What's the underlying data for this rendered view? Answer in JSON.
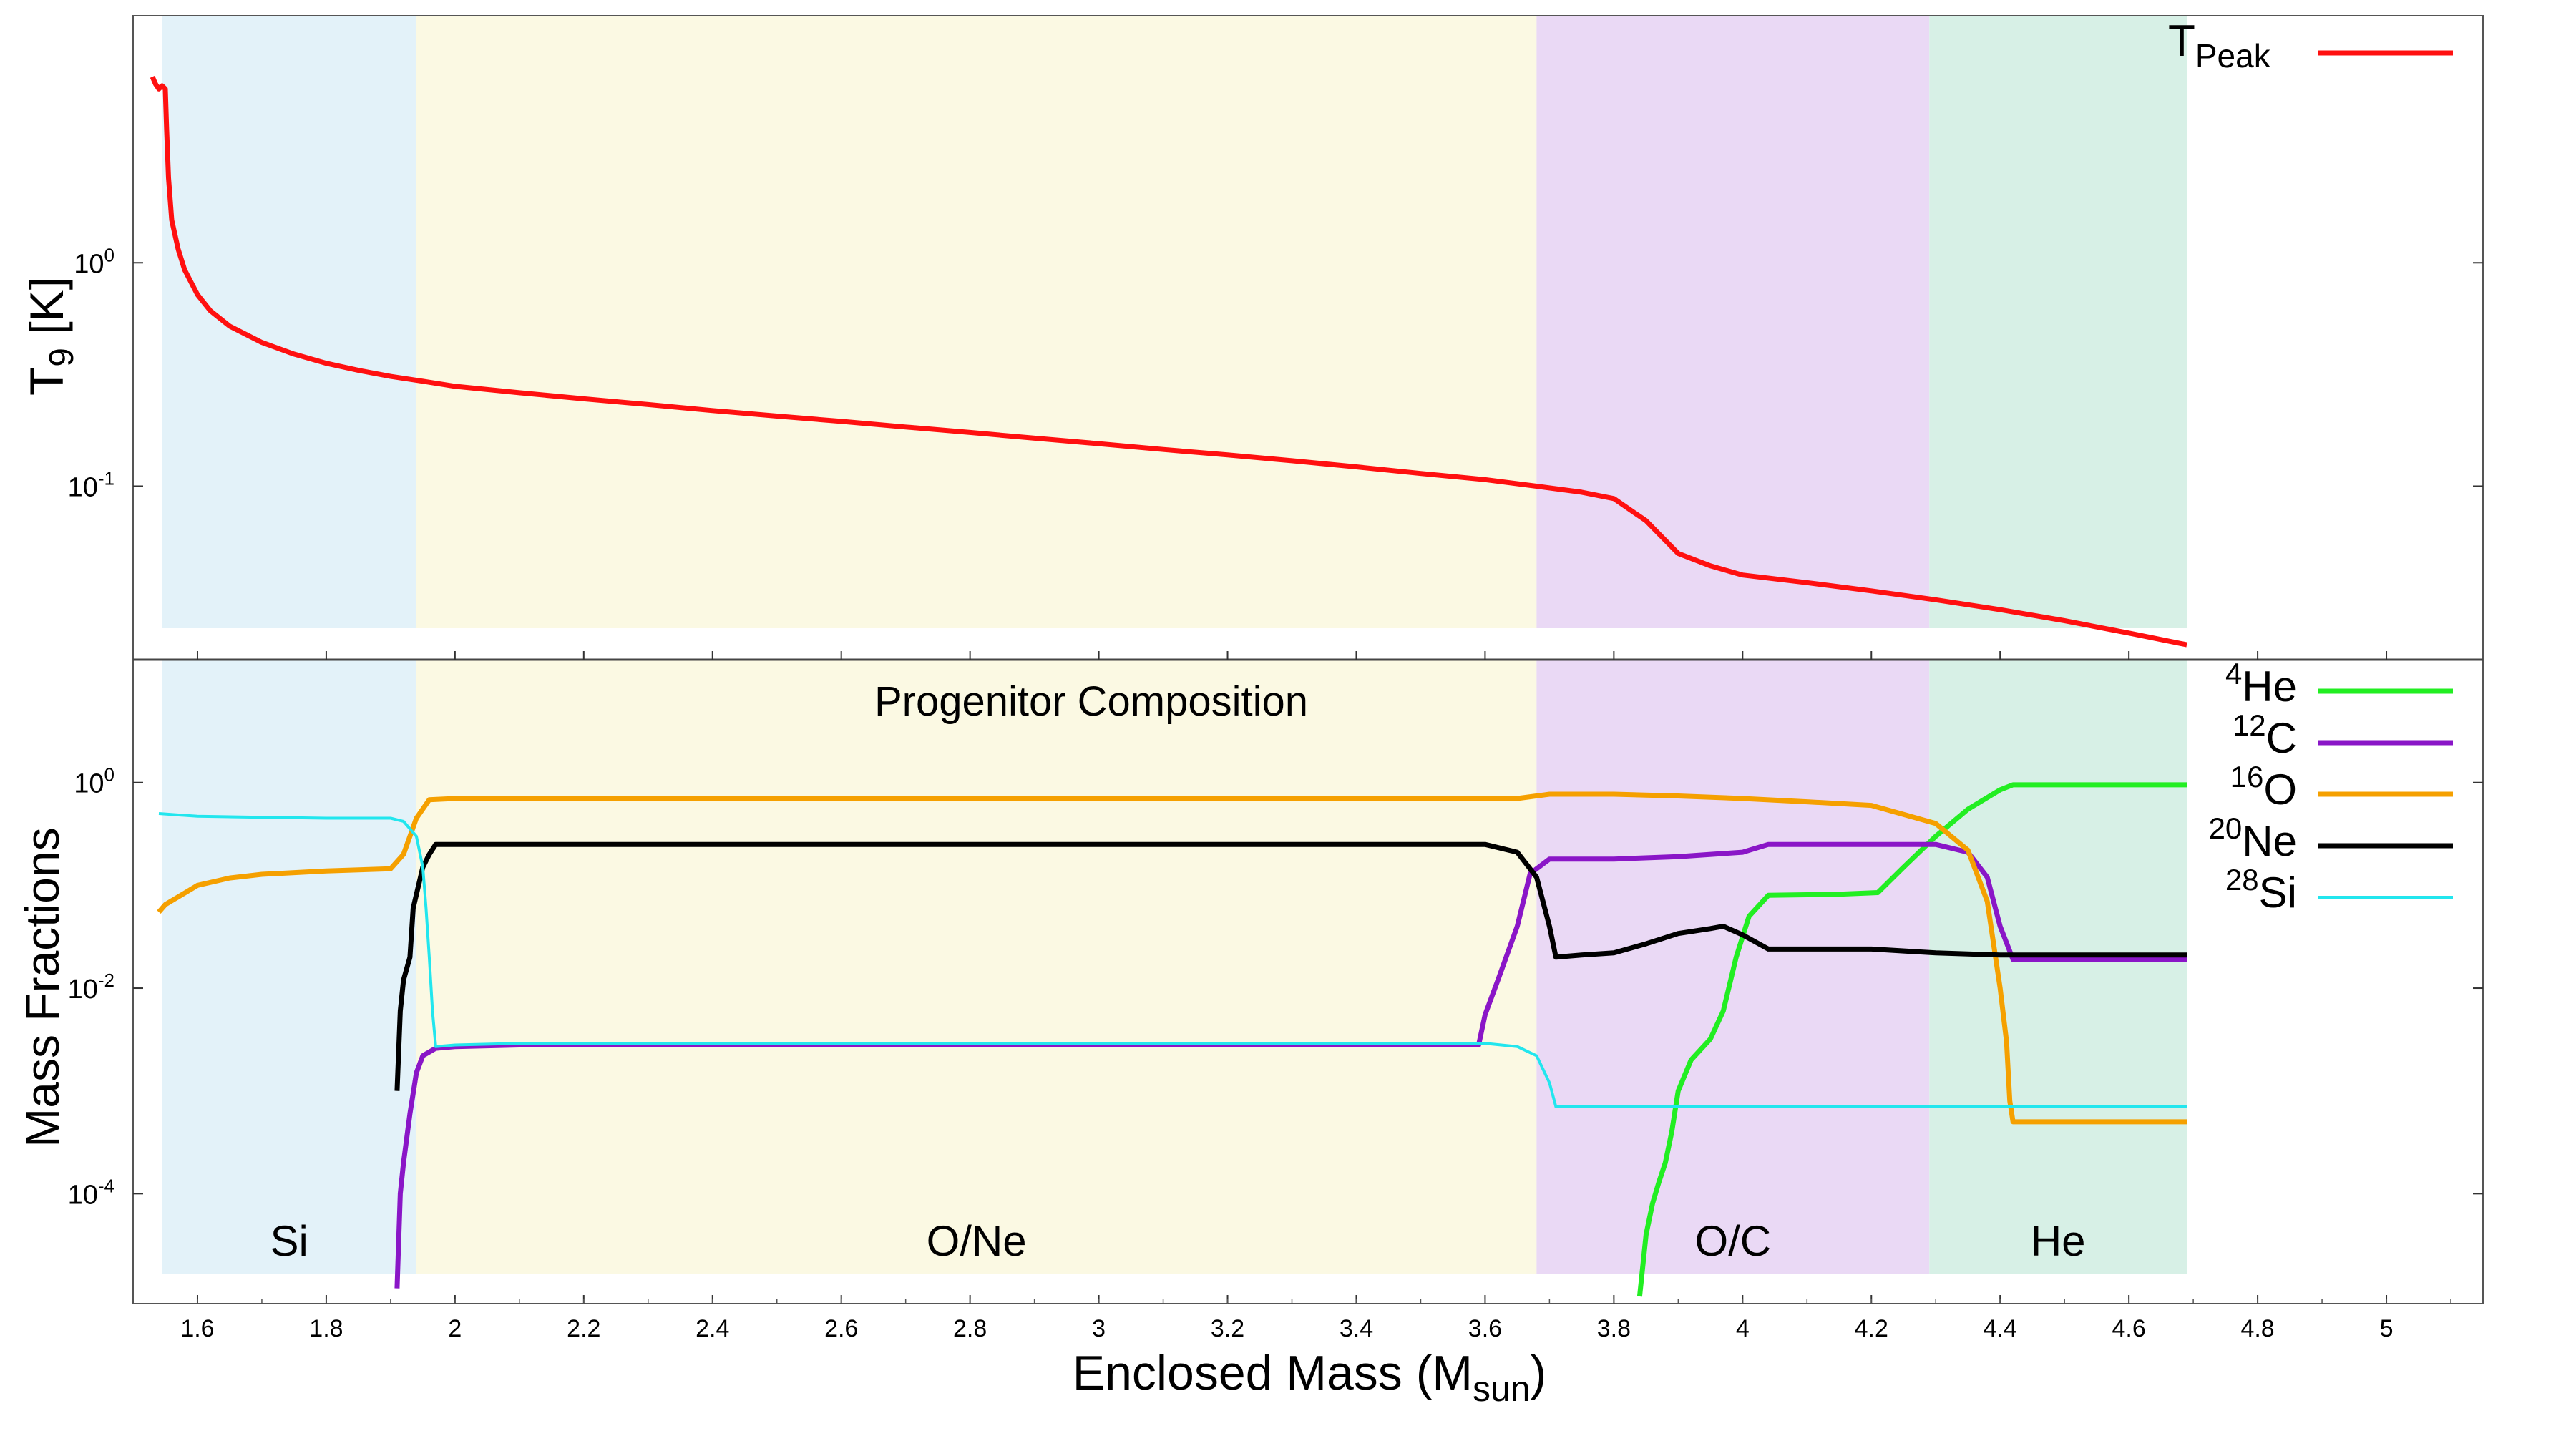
{
  "chart_data": [
    {
      "type": "line",
      "panel": "top",
      "ylabel": "T",
      "ylabel_sub": "9",
      "ylabel_unit": " [K]",
      "yscale": "log",
      "ylim": [
        0.018,
        9.5
      ],
      "xlim": [
        1.5,
        5.15
      ],
      "yticks": [
        {
          "base": "10",
          "exp": "0",
          "value": 1
        },
        {
          "base": "10",
          "exp": "-1",
          "value": 0.1
        }
      ],
      "legend_position": "top-right",
      "series": [
        {
          "name": "T",
          "name_sub": "Peak",
          "color": "#ff1010",
          "x": [
            1.53,
            1.535,
            1.54,
            1.545,
            1.55,
            1.552,
            1.555,
            1.56,
            1.57,
            1.58,
            1.6,
            1.62,
            1.65,
            1.7,
            1.75,
            1.8,
            1.85,
            1.9,
            1.95,
            2.0,
            2.1,
            2.2,
            2.3,
            2.4,
            2.5,
            2.6,
            2.7,
            2.8,
            2.9,
            3.0,
            3.1,
            3.2,
            3.3,
            3.4,
            3.5,
            3.6,
            3.68,
            3.75,
            3.8,
            3.85,
            3.9,
            3.95,
            4.0,
            4.1,
            4.2,
            4.3,
            4.4,
            4.5,
            4.6,
            4.69
          ],
          "y": [
            6.8,
            6.3,
            6.0,
            6.2,
            6.0,
            4.0,
            2.4,
            1.55,
            1.15,
            0.93,
            0.72,
            0.61,
            0.52,
            0.44,
            0.39,
            0.355,
            0.33,
            0.31,
            0.295,
            0.28,
            0.262,
            0.246,
            0.232,
            0.218,
            0.206,
            0.195,
            0.184,
            0.174,
            0.164,
            0.155,
            0.146,
            0.138,
            0.13,
            0.122,
            0.114,
            0.107,
            0.1,
            0.094,
            0.088,
            0.07,
            0.05,
            0.044,
            0.04,
            0.037,
            0.034,
            0.031,
            0.028,
            0.025,
            0.022,
            0.0195
          ]
        }
      ]
    },
    {
      "type": "line",
      "panel": "bottom",
      "title": "Progenitor Composition",
      "ylabel": "Mass Fractions",
      "yscale": "log",
      "ylim": [
        1e-05,
        8
      ],
      "xlim": [
        1.5,
        5.15
      ],
      "xlabel": "Enclosed Mass (M",
      "xlabel_sub": "sun",
      "xlabel_end": ")",
      "xticks": [
        "1.6",
        "1.8",
        "2",
        "2.2",
        "2.4",
        "2.6",
        "2.8",
        "3",
        "3.2",
        "3.4",
        "3.6",
        "3.8",
        "4",
        "4.2",
        "4.4",
        "4.6",
        "4.8",
        "5"
      ],
      "yticks": [
        {
          "base": "10",
          "exp": "0",
          "value": 1
        },
        {
          "base": "10",
          "exp": "-2",
          "value": 0.01
        },
        {
          "base": "10",
          "exp": "-4",
          "value": 0.0001
        }
      ],
      "legend_position": "top-right",
      "series": [
        {
          "sup": "4",
          "name": "He",
          "color": "#22ee22",
          "x": [
            3.84,
            3.85,
            3.86,
            3.87,
            3.88,
            3.89,
            3.9,
            3.92,
            3.95,
            3.97,
            3.99,
            4.01,
            4.04,
            4.1,
            4.15,
            4.21,
            4.25,
            4.3,
            4.35,
            4.4,
            4.42,
            4.5,
            4.6,
            4.69
          ],
          "y": [
            1e-05,
            4e-05,
            8e-05,
            0.00013,
            0.0002,
            0.0004,
            0.001,
            0.002,
            0.0032,
            0.006,
            0.02,
            0.05,
            0.08,
            0.081,
            0.082,
            0.085,
            0.15,
            0.3,
            0.55,
            0.85,
            0.95,
            0.95,
            0.95,
            0.95
          ]
        },
        {
          "sup": "12",
          "name": "C",
          "color": "#8a16c7",
          "x": [
            1.91,
            1.915,
            1.92,
            1.93,
            1.94,
            1.95,
            1.97,
            2.0,
            2.1,
            2.5,
            3.0,
            3.5,
            3.59,
            3.6,
            3.62,
            3.65,
            3.67,
            3.7,
            3.8,
            3.9,
            4.0,
            4.04,
            4.1,
            4.2,
            4.3,
            4.35,
            4.38,
            4.4,
            4.42,
            4.5,
            4.6,
            4.69
          ],
          "y": [
            1.2e-05,
            0.0001,
            0.0002,
            0.0006,
            0.0015,
            0.0022,
            0.0026,
            0.0027,
            0.0028,
            0.0028,
            0.0028,
            0.0028,
            0.0028,
            0.0055,
            0.012,
            0.04,
            0.13,
            0.18,
            0.18,
            0.19,
            0.21,
            0.25,
            0.25,
            0.25,
            0.25,
            0.21,
            0.12,
            0.04,
            0.019,
            0.019,
            0.019,
            0.019
          ]
        },
        {
          "sup": "16",
          "name": "O",
          "color": "#f5a000",
          "x": [
            1.54,
            1.55,
            1.6,
            1.65,
            1.7,
            1.8,
            1.9,
            1.92,
            1.94,
            1.96,
            2.0,
            2.5,
            3.0,
            3.5,
            3.65,
            3.7,
            3.8,
            3.9,
            4.0,
            4.1,
            4.2,
            4.3,
            4.35,
            4.38,
            4.4,
            4.41,
            4.415,
            4.42,
            4.5,
            4.6,
            4.69
          ],
          "y": [
            0.055,
            0.065,
            0.1,
            0.118,
            0.128,
            0.138,
            0.145,
            0.2,
            0.45,
            0.68,
            0.7,
            0.7,
            0.7,
            0.7,
            0.7,
            0.77,
            0.77,
            0.74,
            0.7,
            0.65,
            0.6,
            0.4,
            0.22,
            0.07,
            0.01,
            0.003,
            0.0008,
            0.0005,
            0.0005,
            0.0005,
            0.0005
          ]
        },
        {
          "sup": "20",
          "name": "Ne",
          "color": "#000000",
          "x": [
            1.91,
            1.915,
            1.92,
            1.93,
            1.935,
            1.95,
            1.96,
            1.97,
            2.0,
            2.5,
            3.0,
            3.5,
            3.6,
            3.65,
            3.68,
            3.7,
            3.71,
            3.75,
            3.8,
            3.85,
            3.9,
            3.95,
            3.97,
            4.0,
            4.04,
            4.1,
            4.2,
            4.3,
            4.4,
            4.5,
            4.6,
            4.69
          ],
          "y": [
            0.001,
            0.006,
            0.012,
            0.02,
            0.06,
            0.15,
            0.2,
            0.25,
            0.25,
            0.25,
            0.25,
            0.25,
            0.25,
            0.21,
            0.12,
            0.04,
            0.02,
            0.021,
            0.022,
            0.027,
            0.034,
            0.038,
            0.04,
            0.033,
            0.024,
            0.024,
            0.024,
            0.022,
            0.021,
            0.021,
            0.021,
            0.021
          ]
        },
        {
          "sup": "28",
          "name": "Si",
          "color": "#22e6ee",
          "x": [
            1.54,
            1.6,
            1.7,
            1.8,
            1.9,
            1.92,
            1.94,
            1.95,
            1.955,
            1.96,
            1.965,
            1.97,
            2.0,
            2.1,
            2.5,
            3.0,
            3.5,
            3.6,
            3.65,
            3.68,
            3.7,
            3.71,
            3.8,
            4.0,
            4.2,
            4.4,
            4.6,
            4.69
          ],
          "y": [
            0.5,
            0.47,
            0.46,
            0.45,
            0.45,
            0.42,
            0.3,
            0.15,
            0.06,
            0.02,
            0.006,
            0.0027,
            0.0028,
            0.0029,
            0.0029,
            0.0029,
            0.0029,
            0.0029,
            0.0027,
            0.0022,
            0.0012,
            0.0007,
            0.0007,
            0.0007,
            0.0007,
            0.0007,
            0.0007,
            0.0007
          ]
        }
      ]
    }
  ],
  "regions": [
    {
      "label": "Si",
      "x0": 1.545,
      "x1": 1.94,
      "color": "#e3f2f9"
    },
    {
      "label": "O/Ne",
      "x0": 1.94,
      "x1": 3.68,
      "color": "#fbf9e3"
    },
    {
      "label": "O/C",
      "x0": 3.68,
      "x1": 4.29,
      "color": "#ead9f5"
    },
    {
      "label": "He",
      "x0": 4.29,
      "x1": 4.69,
      "color": "#d7f0e6"
    }
  ]
}
